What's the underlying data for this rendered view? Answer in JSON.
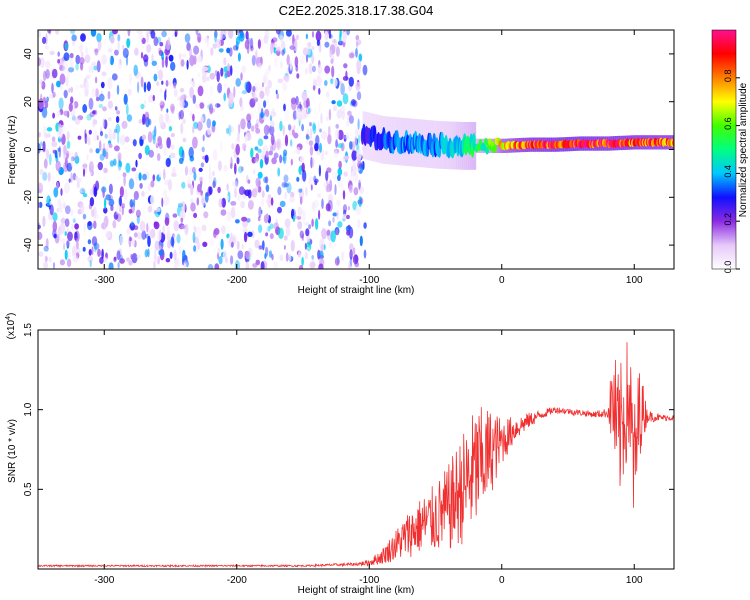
{
  "title": "C2E2.2025.318.17.38.G04",
  "chart_data": [
    {
      "type": "heatmap",
      "title": "C2E2.2025.318.17.38.G04",
      "xlabel": "Height of straight line (km)",
      "ylabel": "Frequency (Hz)",
      "xlim": [
        -350,
        130
      ],
      "ylim": [
        -50,
        50
      ],
      "xticks": [
        -300,
        -200,
        -100,
        0,
        100
      ],
      "xtick_labels": [
        "-300",
        "-200",
        "-100",
        "0",
        "100"
      ],
      "yticks": [
        -40,
        -20,
        0,
        20,
        40
      ],
      "ytick_labels": [
        "-40",
        "-20",
        "0",
        "20",
        "40"
      ],
      "noise_region_x": [
        -350,
        -103
      ],
      "noise_level": 0.15,
      "ridge": {
        "x": [
          -105,
          -90,
          -70,
          -50,
          -30,
          -10,
          0,
          20,
          40,
          60,
          80,
          100,
          130
        ],
        "frequency": [
          6,
          4,
          3,
          2,
          1.5,
          1.5,
          1.5,
          2,
          2,
          2.5,
          2.5,
          3,
          3
        ],
        "amplitude": [
          0.3,
          0.35,
          0.4,
          0.4,
          0.5,
          0.6,
          0.8,
          0.95,
          1.0,
          1.0,
          0.98,
          0.95,
          0.9
        ]
      },
      "colorbar": {
        "label": "Normalized spectral amplitude",
        "range": [
          0,
          1
        ],
        "ticks": [
          0.0,
          0.2,
          0.4,
          0.6,
          0.8
        ],
        "tick_labels": [
          "0.0",
          "0.2",
          "0.4",
          "0.6",
          "0.8"
        ],
        "colors": [
          "#ffffff",
          "#e6c8fa",
          "#8a2be2",
          "#1010ff",
          "#00c8ff",
          "#00ff80",
          "#40ff00",
          "#ffff00",
          "#ff8000",
          "#ff0000",
          "#ff1090"
        ]
      }
    },
    {
      "type": "line",
      "xlabel": "Height of straight line (km)",
      "ylabel": "SNR (10 * v/v)",
      "exponent_label": "(x10",
      "exponent_power": "4",
      "exponent_close": ")",
      "xlim": [
        -350,
        130
      ],
      "ylim": [
        0,
        1.5
      ],
      "xticks": [
        -300,
        -200,
        -100,
        0,
        100
      ],
      "xtick_labels": [
        "-300",
        "-200",
        "-100",
        "0",
        "100"
      ],
      "yticks": [
        0.5,
        1.0,
        1.5
      ],
      "ytick_labels": [
        "0.5",
        "1.0",
        "1.5"
      ],
      "series": [
        {
          "name": "SNR",
          "color": "#f03030",
          "x": [
            -350,
            -300,
            -250,
            -200,
            -150,
            -110,
            -100,
            -90,
            -80,
            -70,
            -60,
            -50,
            -40,
            -30,
            -20,
            -10,
            0,
            10,
            20,
            30,
            40,
            50,
            60,
            70,
            80,
            84,
            88,
            92,
            96,
            100,
            104,
            110,
            120,
            130
          ],
          "values": [
            0.02,
            0.02,
            0.02,
            0.02,
            0.02,
            0.03,
            0.04,
            0.08,
            0.15,
            0.22,
            0.28,
            0.32,
            0.38,
            0.5,
            0.62,
            0.72,
            0.8,
            0.88,
            0.93,
            0.97,
            1.0,
            0.99,
            0.98,
            0.97,
            0.98,
            1.05,
            0.8,
            0.95,
            1.1,
            0.6,
            1.0,
            0.96,
            0.95,
            0.95
          ],
          "noise": [
            0.005,
            0.005,
            0.005,
            0.005,
            0.005,
            0.01,
            0.02,
            0.05,
            0.1,
            0.15,
            0.18,
            0.22,
            0.28,
            0.35,
            0.4,
            0.3,
            0.15,
            0.08,
            0.05,
            0.03,
            0.02,
            0.02,
            0.02,
            0.02,
            0.03,
            0.35,
            0.45,
            0.4,
            0.4,
            0.45,
            0.3,
            0.04,
            0.02,
            0.02
          ]
        }
      ]
    }
  ]
}
